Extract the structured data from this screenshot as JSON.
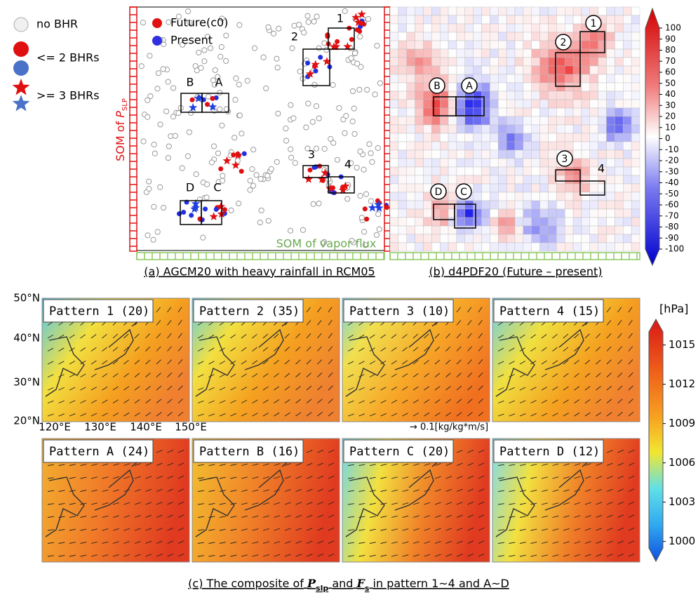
{
  "legend": {
    "items": [
      {
        "label": "no BHR"
      },
      {
        "label": "<= 2 BHRs"
      },
      {
        "label": ">= 3 BHRs"
      }
    ]
  },
  "panel_a": {
    "legend": [
      "Future(c0)",
      "Present"
    ],
    "y_axis_label": {
      "prefix": "SOM of",
      "symbol": "P",
      "subscript": "SLP"
    },
    "x_axis_label": "SOM of vapor flux",
    "boxes": [
      "1",
      "2",
      "3",
      "4",
      "A",
      "B",
      "C",
      "D"
    ],
    "caption": "(a) AGCM20 with heavy rainfall in RCM05"
  },
  "panel_b": {
    "boxes": [
      "1",
      "2",
      "3",
      "4",
      "A",
      "B",
      "C",
      "D"
    ],
    "caption": "(b) d4PDF20 (Future – present)",
    "colorbar": {
      "ylim": [
        -100,
        100
      ],
      "yticks": [
        100,
        90,
        80,
        70,
        60,
        50,
        40,
        30,
        20,
        10,
        0,
        -10,
        -20,
        -30,
        -40,
        -50,
        -60,
        -70,
        -80,
        -90,
        -100
      ]
    }
  },
  "panel_c": {
    "panels": [
      "Pattern 1 (20)",
      "Pattern 2 (35)",
      "Pattern 3 (10)",
      "Pattern 4 (15)",
      "Pattern A (24)",
      "Pattern B (16)",
      "Pattern C (20)",
      "Pattern D (12)"
    ],
    "lat_labels": [
      "50°N",
      "40°N",
      "30°N",
      "20°N"
    ],
    "lon_labels": [
      "120°E",
      "130°E",
      "140°E",
      "150°E"
    ],
    "scale_label": "→ 0.1[kg/kg*m/s]",
    "unit": "[hPa]",
    "colorbar": {
      "ylim": [
        999.5,
        1016
      ],
      "yticks": [
        1015,
        1012,
        1009,
        1006,
        1003,
        1000
      ]
    },
    "caption": {
      "prefix": "(c) The composite of",
      "p": "P",
      "p_sub": "slp",
      "and": "and",
      "f": "F",
      "f_sub": "s",
      "suffix": "in pattern 1~4 and A~D"
    }
  }
}
